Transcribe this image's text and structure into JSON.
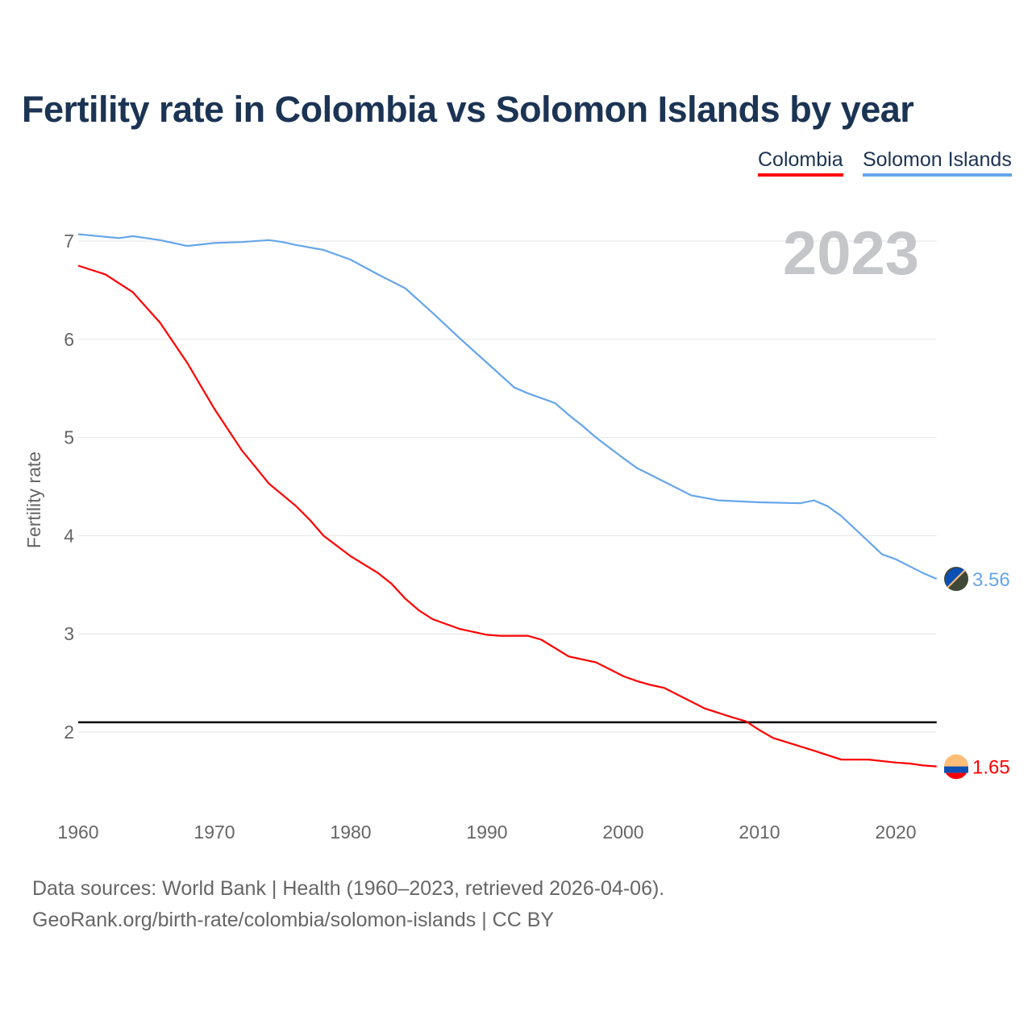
{
  "chart_data": {
    "type": "line",
    "title": "Fertility rate in Colombia vs Solomon Islands by year",
    "xlabel": "",
    "ylabel": "Fertility rate",
    "xlim": [
      1960,
      2023
    ],
    "ylim": [
      1.2,
      7.1
    ],
    "grid": true,
    "year_label": "2023",
    "x_ticks": [
      1960,
      1970,
      1980,
      1990,
      2000,
      2010,
      2020
    ],
    "y_ticks": [
      2,
      3,
      4,
      5,
      6,
      7
    ],
    "reference_line": 2.1,
    "legend_position": "top-right",
    "series": [
      {
        "name": "Colombia",
        "color": "#ff0000",
        "end_label": "1.65",
        "x": [
          1960,
          1962,
          1964,
          1966,
          1968,
          1970,
          1972,
          1974,
          1976,
          1977,
          1978,
          1980,
          1982,
          1983,
          1984,
          1985,
          1986,
          1988,
          1990,
          1991,
          1993,
          1994,
          1996,
          1998,
          2000,
          2001,
          2002,
          2003,
          2006,
          2008,
          2009,
          2010,
          2011,
          2014,
          2016,
          2018,
          2020,
          2021,
          2022,
          2023
        ],
        "values": [
          6.75,
          6.66,
          6.48,
          6.17,
          5.76,
          5.29,
          4.87,
          4.53,
          4.3,
          4.16,
          4.0,
          3.79,
          3.62,
          3.51,
          3.36,
          3.24,
          3.15,
          3.05,
          2.99,
          2.98,
          2.98,
          2.94,
          2.77,
          2.71,
          2.57,
          2.52,
          2.48,
          2.45,
          2.24,
          2.15,
          2.11,
          2.02,
          1.94,
          1.81,
          1.72,
          1.72,
          1.69,
          1.68,
          1.66,
          1.65
        ]
      },
      {
        "name": "Solomon Islands",
        "color": "#66a6ea",
        "end_label": "3.56",
        "x": [
          1960,
          1963,
          1964,
          1966,
          1968,
          1970,
          1972,
          1974,
          1975,
          1976,
          1978,
          1980,
          1982,
          1984,
          1986,
          1988,
          1990,
          1992,
          1993,
          1995,
          1996,
          1997,
          1998,
          2000,
          2001,
          2003,
          2005,
          2007,
          2010,
          2013,
          2014,
          2015,
          2016,
          2019,
          2020,
          2021,
          2022,
          2023
        ],
        "values": [
          7.07,
          7.03,
          7.05,
          7.01,
          6.95,
          6.98,
          6.99,
          7.01,
          6.99,
          6.96,
          6.91,
          6.81,
          6.66,
          6.52,
          6.27,
          6.01,
          5.76,
          5.51,
          5.45,
          5.35,
          5.23,
          5.12,
          5.0,
          4.79,
          4.69,
          4.55,
          4.41,
          4.36,
          4.34,
          4.33,
          4.36,
          4.3,
          4.2,
          3.81,
          3.76,
          3.69,
          3.62,
          3.56
        ]
      }
    ]
  },
  "sources": {
    "line1": "Data sources: World Bank | Health (1960–2023, retrieved 2026-04-06).",
    "line2": "GeoRank.org/birth-rate/colombia/solomon-islands | CC BY"
  }
}
